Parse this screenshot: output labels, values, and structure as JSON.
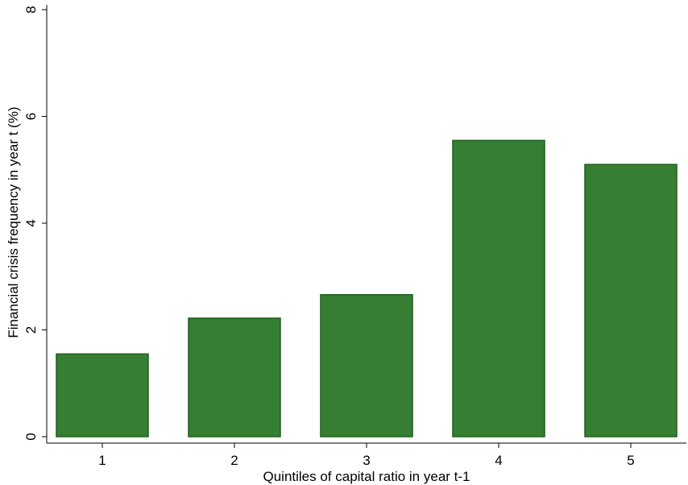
{
  "chart_data": {
    "type": "bar",
    "title": "",
    "xlabel": "Quintiles of capital ratio in year t-1",
    "ylabel": "Financial crisis frequency in year t (%)",
    "categories": [
      "1",
      "2",
      "3",
      "4",
      "5"
    ],
    "values": [
      1.55,
      2.22,
      2.66,
      5.55,
      5.1
    ],
    "ylim": [
      0,
      8
    ],
    "yticks": [
      "0",
      "2",
      "4",
      "6",
      "8"
    ],
    "grid": false,
    "legend": "none",
    "colors": {
      "bar_fill": "#367E32",
      "bar_edge": "#1F5E1E",
      "axis": "#000000"
    }
  }
}
